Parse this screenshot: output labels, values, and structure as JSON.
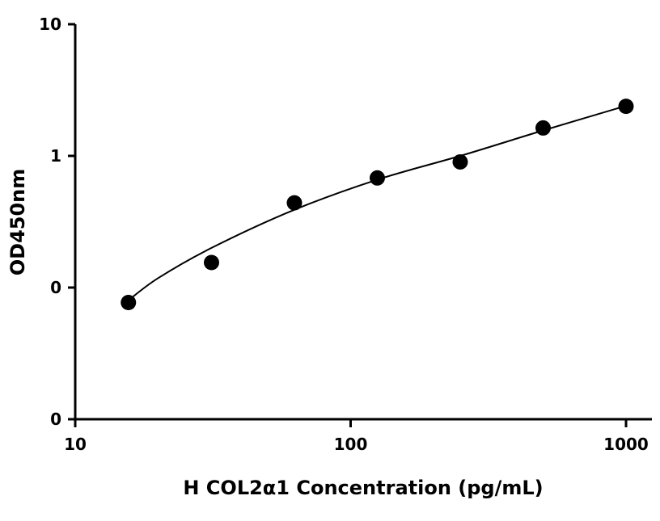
{
  "chart_data": {
    "type": "scatter",
    "xlabel": "H COL2α1 Concentration (pg/mL)",
    "ylabel": "OD450nm",
    "x_scale": "log",
    "y_scale": "log",
    "xlim": [
      10,
      1000
    ],
    "ylim": [
      0.01,
      10
    ],
    "x_ticks": [
      10,
      100,
      1000
    ],
    "x_tick_labels": [
      "10",
      "100",
      "1000"
    ],
    "y_ticks": [
      0.01,
      0.1,
      1,
      10
    ],
    "y_tick_labels": [
      "0",
      "0",
      "1",
      "10"
    ],
    "grid": false,
    "legend": "none",
    "colors": {
      "points": "#000000",
      "line": "#000000",
      "axes": "#000000"
    },
    "series": [
      {
        "x": [
          15.6,
          31.25,
          62.5,
          125,
          250,
          500,
          1000
        ],
        "y": [
          0.077,
          0.155,
          0.44,
          0.68,
          0.9,
          1.63,
          2.38
        ]
      }
    ],
    "fit": {
      "type": "curve",
      "x": [
        15.6,
        20,
        31.25,
        62.5,
        125,
        250,
        500,
        1000
      ],
      "y": [
        0.08,
        0.118,
        0.2,
        0.39,
        0.66,
        1.0,
        1.56,
        2.4
      ]
    }
  }
}
